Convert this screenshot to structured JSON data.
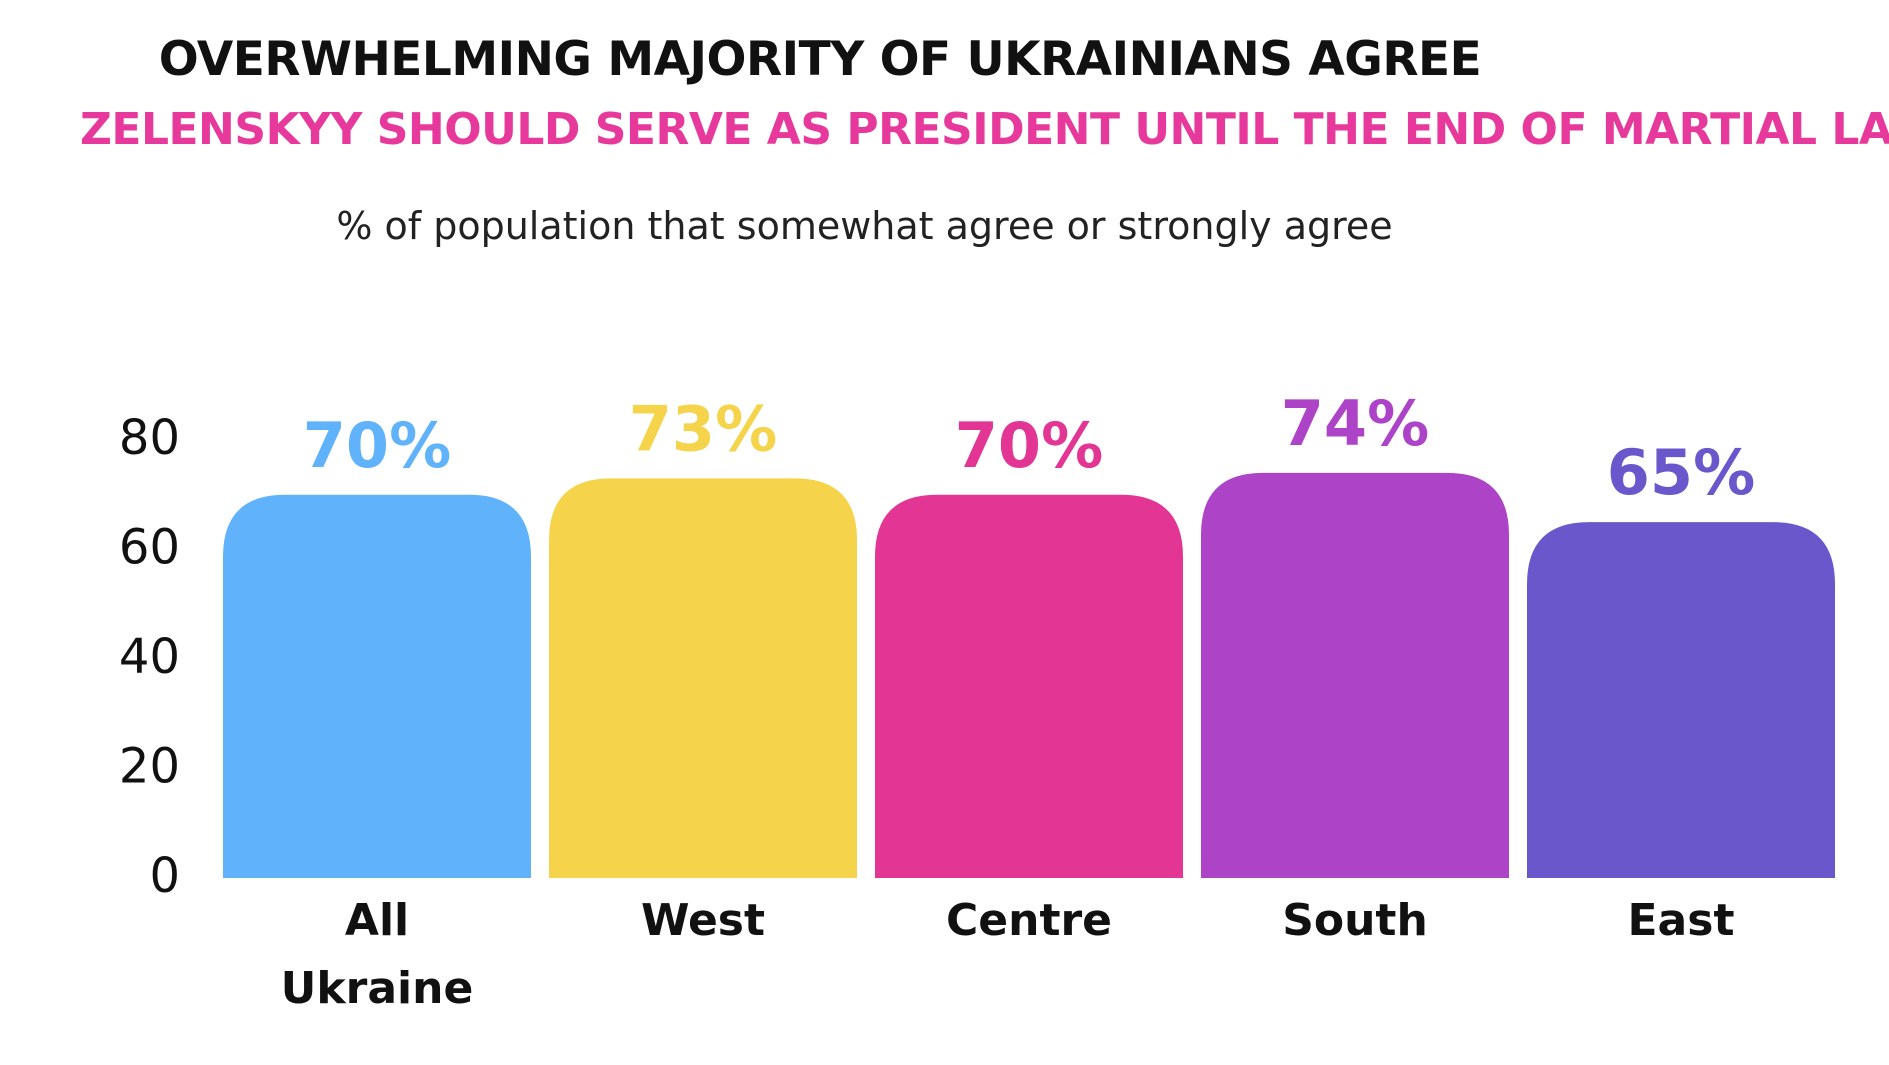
{
  "chart_data": {
    "type": "bar",
    "title": "OVERWHELMING MAJORITY OF UKRAINIANS AGREE",
    "subtitle": "ZELENSKYY SHOULD SERVE AS PRESIDENT UNTIL THE END OF MARTIAL LAW",
    "caption": "% of population that somewhat agree or strongly agree",
    "categories": [
      [
        "All",
        "Ukraine"
      ],
      [
        "West"
      ],
      [
        "Centre"
      ],
      [
        "South"
      ],
      [
        "East"
      ]
    ],
    "values": [
      70,
      73,
      70,
      74,
      65
    ],
    "data_labels": [
      "70%",
      "73%",
      "70%",
      "74%",
      "65%"
    ],
    "colors": [
      "#60b3fa",
      "#f5d44c",
      "#e23594",
      "#ad43c6",
      "#6a57cb"
    ],
    "yticks": [
      0,
      20,
      40,
      60,
      80
    ],
    "ylim": [
      0,
      80
    ],
    "grid": false,
    "legend": "none",
    "title_color": "#111111",
    "subtitle_color": "#e6399b"
  }
}
